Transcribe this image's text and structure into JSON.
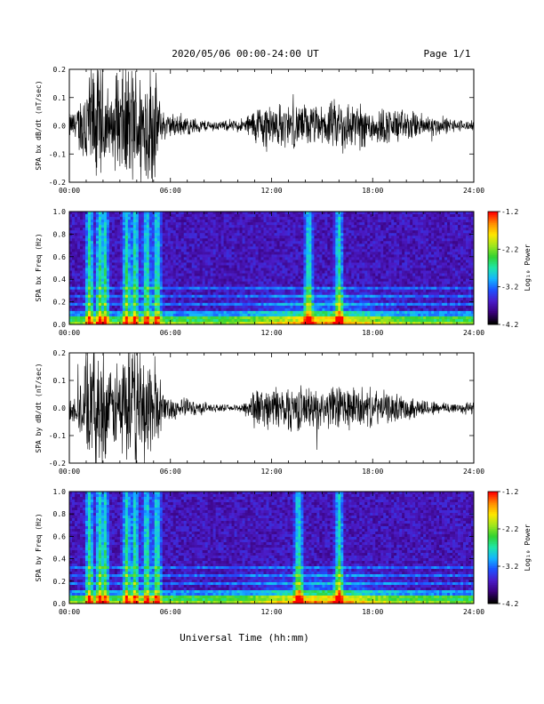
{
  "header": {
    "title": "2020/05/06  00:00-24:00 UT",
    "page": "Page 1/1"
  },
  "footer": {
    "xlabel": "Universal Time (hh:mm)"
  },
  "colors": {
    "trace": "#000000",
    "frame": "#000000"
  },
  "colorbar_palette": [
    "#000000",
    "#3a007a",
    "#4a1cc8",
    "#1e50ff",
    "#14b4ff",
    "#1ee6aa",
    "#32d232",
    "#a0e61e",
    "#ffe600",
    "#ff8c00",
    "#ff0000"
  ],
  "chart_data": [
    {
      "type": "line",
      "ylabel": "SPA bx dB/dt (nT/sec)",
      "xlim": [
        "00:00",
        "24:00"
      ],
      "ylim": [
        -0.2,
        0.2
      ],
      "yticks": [
        "0.2",
        "0.1",
        "0.0",
        "-0.1",
        "-0.2"
      ],
      "xticks": [
        "00:00",
        "06:00",
        "12:00",
        "18:00",
        "24:00"
      ],
      "series": [
        {
          "x_hours": [
            0,
            0.5,
            1,
            1.3,
            1.6,
            2,
            2.5,
            3,
            3.3,
            3.7,
            4,
            4.3,
            4.7,
            5,
            5.5,
            6,
            7,
            8,
            9,
            10,
            10.5,
            11,
            11.5,
            12,
            13,
            14,
            15,
            16,
            17,
            18,
            19,
            20,
            21,
            22,
            23,
            24
          ],
          "amplitude": [
            0.04,
            0.06,
            0.2,
            0.2,
            0.2,
            0.2,
            0.08,
            0.2,
            0.2,
            0.2,
            0.2,
            0.2,
            0.2,
            0.2,
            0.05,
            0.04,
            0.03,
            0.02,
            0.015,
            0.02,
            0.03,
            0.06,
            0.08,
            0.07,
            0.07,
            0.07,
            0.06,
            0.09,
            0.08,
            0.06,
            0.06,
            0.05,
            0.04,
            0.03,
            0.02,
            0.015
          ]
        }
      ]
    },
    {
      "type": "heatmap",
      "ylabel": "SPA bx Freq (Hz)",
      "xlim": [
        "00:00",
        "24:00"
      ],
      "ylim": [
        0,
        1.0
      ],
      "yticks": [
        "1.0",
        "0.8",
        "0.6",
        "0.4",
        "0.2",
        "0.0"
      ],
      "xticks": [
        "00:00",
        "06:00",
        "12:00",
        "18:00",
        "24:00"
      ],
      "colorbar": {
        "label": "Log₁₀ Power",
        "range": [
          -4.2,
          -1.2
        ],
        "ticks": [
          "-1.2",
          "-2.2",
          "-3.2",
          "-4.2"
        ]
      },
      "bands_hz": [
        0.05,
        0.1,
        0.18,
        0.25,
        0.31
      ],
      "bursts_hours": [
        1.2,
        1.8,
        2.1,
        3.4,
        3.9,
        4.6,
        5.2,
        14.2,
        16.0
      ]
    },
    {
      "type": "line",
      "ylabel": "SPA by dB/dt (nT/sec)",
      "xlim": [
        "00:00",
        "24:00"
      ],
      "ylim": [
        -0.2,
        0.2
      ],
      "yticks": [
        "0.2",
        "0.1",
        "0.0",
        "-0.1",
        "-0.2"
      ],
      "xticks": [
        "00:00",
        "06:00",
        "12:00",
        "18:00",
        "24:00"
      ],
      "series": [
        {
          "x_hours": [
            0,
            0.5,
            1,
            1.3,
            1.6,
            2,
            2.5,
            3,
            3.3,
            3.7,
            4,
            4.3,
            4.7,
            5,
            5.5,
            6,
            7,
            8,
            9,
            10,
            10.5,
            11,
            11.5,
            12,
            13,
            14,
            15,
            16,
            17,
            18,
            19,
            20,
            21,
            22,
            23,
            24
          ],
          "amplitude": [
            0.04,
            0.06,
            0.2,
            0.2,
            0.2,
            0.2,
            0.1,
            0.2,
            0.2,
            0.2,
            0.2,
            0.2,
            0.2,
            0.2,
            0.05,
            0.04,
            0.03,
            0.02,
            0.01,
            0.01,
            0.03,
            0.07,
            0.06,
            0.07,
            0.08,
            0.07,
            0.06,
            0.08,
            0.07,
            0.06,
            0.05,
            0.04,
            0.03,
            0.02,
            0.02,
            0.02
          ]
        }
      ]
    },
    {
      "type": "heatmap",
      "ylabel": "SPA by Freq (Hz)",
      "xlim": [
        "00:00",
        "24:00"
      ],
      "ylim": [
        0,
        1.0
      ],
      "yticks": [
        "1.0",
        "0.8",
        "0.6",
        "0.4",
        "0.2",
        "0.0"
      ],
      "xticks": [
        "00:00",
        "06:00",
        "12:00",
        "18:00",
        "24:00"
      ],
      "colorbar": {
        "label": "Log₁₀ Power",
        "range": [
          -4.2,
          -1.2
        ],
        "ticks": [
          "-1.2",
          "-2.2",
          "-3.2",
          "-4.2"
        ]
      },
      "bands_hz": [
        0.05,
        0.1,
        0.18,
        0.25,
        0.33
      ],
      "bursts_hours": [
        1.2,
        1.8,
        2.1,
        3.4,
        3.9,
        4.6,
        5.2,
        13.6,
        16.0
      ]
    }
  ]
}
